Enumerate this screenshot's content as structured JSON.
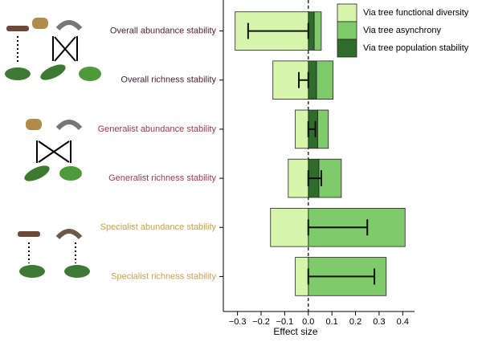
{
  "chart_data": {
    "type": "bar",
    "orientation": "horizontal",
    "categories": [
      "Overall abundance stability",
      "Overall richness stability",
      "Generalist abundance stability",
      "Generalist richness stability",
      "Specialist abundance stability",
      "Specialist richness stability"
    ],
    "category_colors": [
      "#4a1c3c",
      "#4a1c3c",
      "#9b3a4a",
      "#9b3a4a",
      "#c9a050",
      "#c9a050"
    ],
    "series": [
      {
        "name": "Via tree functional diversity",
        "color": "#d6f5ab",
        "values": [
          -0.31,
          -0.15,
          -0.055,
          -0.085,
          -0.16,
          -0.055
        ]
      },
      {
        "name": "Via tree asynchrony",
        "color": "#7fcb6c",
        "values": [
          0.03,
          0.07,
          0.045,
          0.095,
          0.41,
          0.33
        ]
      },
      {
        "name": "Via tree population stability",
        "color": "#2f6b2b",
        "values": [
          0.025,
          0.035,
          0.04,
          0.045,
          0,
          0
        ]
      }
    ],
    "total_effect": [
      -0.255,
      -0.04,
      0.03,
      0.055,
      0.25,
      0.28
    ],
    "xlabel": "Effect size",
    "xlim": [
      -0.36,
      0.45
    ],
    "xticks": [
      {
        "value": -0.3,
        "label": "−0.3"
      },
      {
        "value": -0.2,
        "label": "−0.2"
      },
      {
        "value": -0.1,
        "label": "−0.1"
      },
      {
        "value": 0,
        "label": "0.0"
      },
      0.1,
      0.2,
      0.3,
      0.4
    ],
    "legend": "upper right"
  }
}
